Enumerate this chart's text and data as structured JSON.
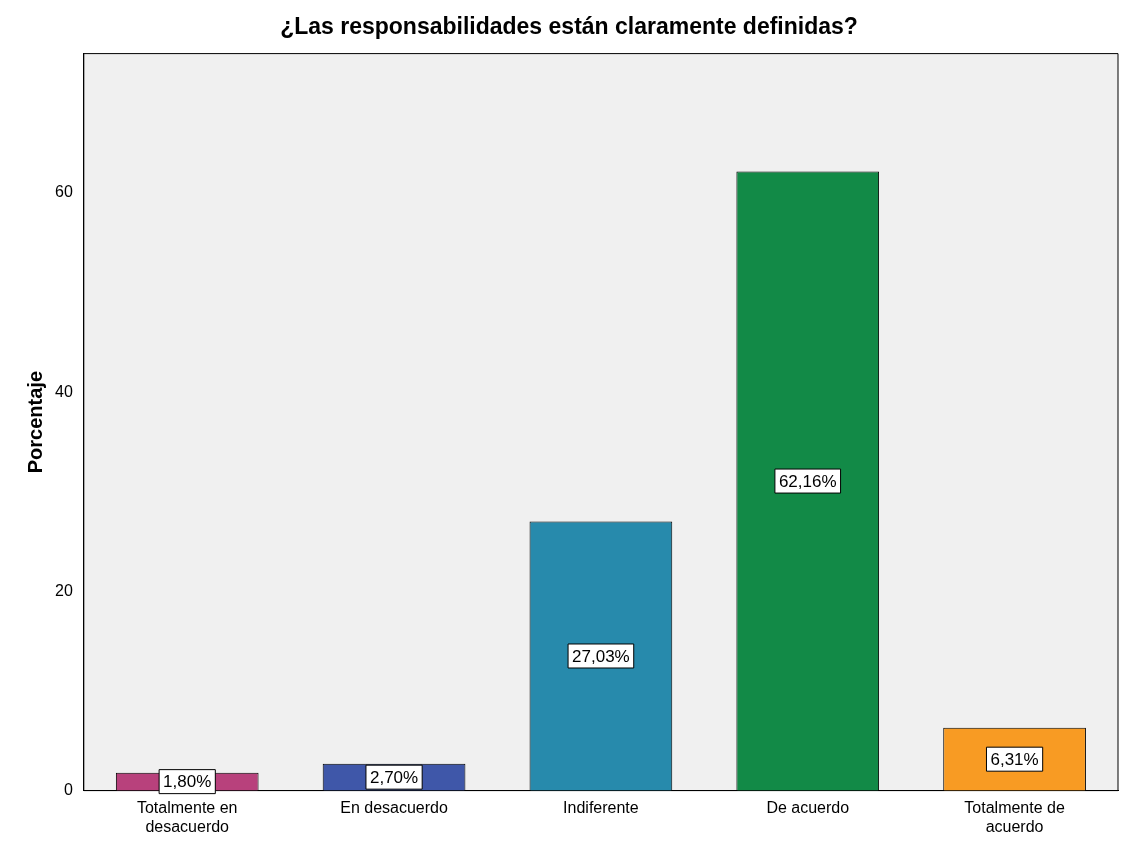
{
  "chart_data": {
    "type": "bar",
    "title": "¿Las responsabilidades están claramente definidas?",
    "ylabel": "Porcentaje",
    "categories": [
      "Totalmente en desacuerdo",
      "En desacuerdo",
      "Indiferente",
      "De acuerdo",
      "Totalmente de acuerdo"
    ],
    "values": [
      1.8,
      2.7,
      27.03,
      62.16,
      6.31
    ],
    "colors": [
      "#b8417c",
      "#3f57a9",
      "#278aac",
      "#128a47",
      "#f89b23"
    ],
    "value_labels": [
      "1,80%",
      "2,70%",
      "27,03%",
      "62,16%",
      "6,31%"
    ],
    "ylim": [
      0,
      74
    ],
    "yticks": [
      0,
      20,
      40,
      60
    ],
    "grid": false,
    "legend": false
  }
}
